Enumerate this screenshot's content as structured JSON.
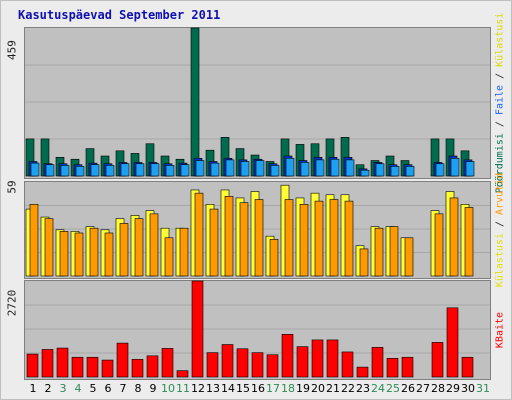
{
  "title": "Kasutuspäevad September 2011",
  "colors": {
    "visits": "#006b4d",
    "hits": "#1ea0f0",
    "files": "#0038c8",
    "pages": "#ffff33",
    "hosts": "#ff9900",
    "kbytes": "#ff0000",
    "weekend_day": "#2e8b57",
    "weekday": "#000000"
  },
  "legend": {
    "top": {
      "p1": "Pöördumisi",
      "s1": " / ",
      "p2": "Faile",
      "s2": " / ",
      "p3": "Külastusi"
    },
    "mid": {
      "p1": "Külastusi",
      "s1": " / ",
      "p2": "Arvutid"
    },
    "bottom": "KBaite"
  },
  "chart_data": {
    "type": "bar",
    "categories": [
      "1",
      "2",
      "3",
      "4",
      "5",
      "6",
      "7",
      "8",
      "9",
      "10",
      "11",
      "12",
      "13",
      "14",
      "15",
      "16",
      "17",
      "18",
      "19",
      "20",
      "21",
      "22",
      "23",
      "24",
      "25",
      "26",
      "27",
      "28",
      "29",
      "30",
      "31"
    ],
    "weekend_days": [
      3,
      4,
      10,
      11,
      17,
      18,
      24,
      25,
      31
    ],
    "panels": [
      {
        "name": "Pöördumisi / Faile / Külastusi",
        "ymax_label": "459",
        "ymax": 459,
        "series": [
          {
            "name": "Pöördumisi",
            "values": [
              115,
              115,
              58,
              52,
              85,
              62,
              78,
              70,
              100,
              62,
              52,
              459,
              80,
              120,
              85,
              65,
              45,
              115,
              98,
              100,
              115,
              120,
              35,
              48,
              62,
              48,
              0,
              115,
              115,
              78,
              0
            ]
          },
          {
            "name": "Faile",
            "values": [
              45,
              38,
              38,
              35,
              40,
              38,
              42,
              42,
              42,
              38,
              40,
              55,
              45,
              55,
              50,
              52,
              38,
              62,
              48,
              58,
              58,
              58,
              22,
              42,
              35,
              35,
              0,
              42,
              62,
              50,
              0
            ]
          },
          {
            "name": "Külastusi",
            "values": [
              40,
              35,
              33,
              30,
              35,
              33,
              38,
              38,
              38,
              33,
              35,
              48,
              40,
              50,
              45,
              48,
              33,
              55,
              42,
              50,
              52,
              50,
              18,
              38,
              30,
              30,
              0,
              38,
              55,
              45,
              0
            ]
          }
        ]
      },
      {
        "name": "Külastusi / Arvutid",
        "ymax_label": "59",
        "ymax": 59,
        "series": [
          {
            "name": "Külastusi",
            "values": [
              42,
              37,
              29,
              28,
              31,
              29,
              36,
              38,
              41,
              30,
              30,
              54,
              45,
              54,
              49,
              53,
              25,
              57,
              49,
              52,
              51,
              51,
              19,
              31,
              31,
              24,
              0,
              41,
              53,
              45,
              0
            ]
          },
          {
            "name": "Arvutid",
            "values": [
              45,
              36,
              28,
              27,
              30,
              27,
              33,
              36,
              39,
              24,
              30,
              52,
              42,
              50,
              46,
              48,
              23,
              48,
              45,
              47,
              48,
              47,
              17,
              30,
              31,
              24,
              0,
              39,
              49,
              43,
              0
            ]
          }
        ]
      },
      {
        "name": "KBaite",
        "ymax_label": "2720",
        "ymax": 2720,
        "series": [
          {
            "name": "KBaite",
            "values": [
              650,
              780,
              820,
              560,
              560,
              480,
              960,
              500,
              600,
              810,
              180,
              2720,
              690,
              920,
              800,
              690,
              630,
              1210,
              860,
              1050,
              1050,
              710,
              280,
              840,
              530,
              560,
              0,
              980,
              1960,
              560,
              0
            ]
          }
        ]
      }
    ]
  }
}
